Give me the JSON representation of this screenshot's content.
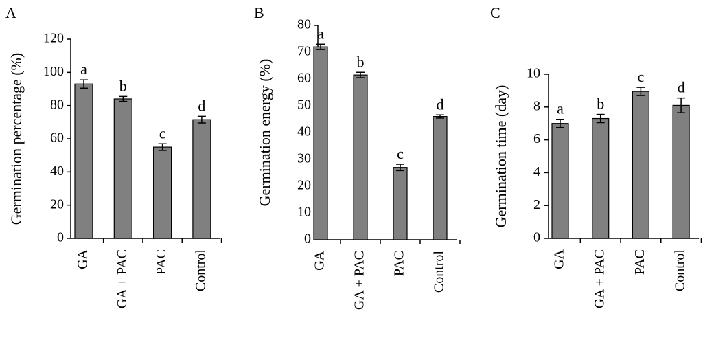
{
  "chart_data": [
    {
      "type": "bar",
      "panel": "A",
      "categories": [
        "GA",
        "GA + PAC",
        "PAC",
        "Control"
      ],
      "values": [
        93,
        84,
        55,
        71.5
      ],
      "errors": [
        2.5,
        1.5,
        2,
        2
      ],
      "significance": [
        "a",
        "b",
        "c",
        "d"
      ],
      "xlabel": "",
      "ylabel": "Germination percentage (%)",
      "ylim": [
        0,
        120
      ],
      "yticks": [
        "0",
        "20",
        "40",
        "60",
        "80",
        "100",
        "120"
      ],
      "bar_color": "#808080",
      "grid": false
    },
    {
      "type": "bar",
      "panel": "B",
      "categories": [
        "GA",
        "GA + PAC",
        "PAC",
        "Control"
      ],
      "values": [
        72,
        61.5,
        27,
        46
      ],
      "errors": [
        1,
        1,
        1.2,
        0.6
      ],
      "significance": [
        "a",
        "b",
        "c",
        "d"
      ],
      "xlabel": "",
      "ylabel": "Germination energy (%)",
      "ylim": [
        0,
        80
      ],
      "yticks": [
        "0",
        "10",
        "20",
        "30",
        "40",
        "50",
        "60",
        "70",
        "80"
      ],
      "bar_color": "#808080",
      "grid": false
    },
    {
      "type": "bar",
      "panel": "C",
      "categories": [
        "GA",
        "GA + PAC",
        "PAC",
        "Control"
      ],
      "values": [
        7,
        7.3,
        8.95,
        8.1
      ],
      "errors": [
        0.25,
        0.25,
        0.25,
        0.45
      ],
      "significance": [
        "a",
        "b",
        "c",
        "d"
      ],
      "xlabel": "",
      "ylabel": "Germination time (day)",
      "ylim": [
        0,
        10
      ],
      "yticks": [
        "0",
        "2",
        "4",
        "6",
        "8",
        "10"
      ],
      "bar_color": "#808080",
      "grid": false
    }
  ]
}
